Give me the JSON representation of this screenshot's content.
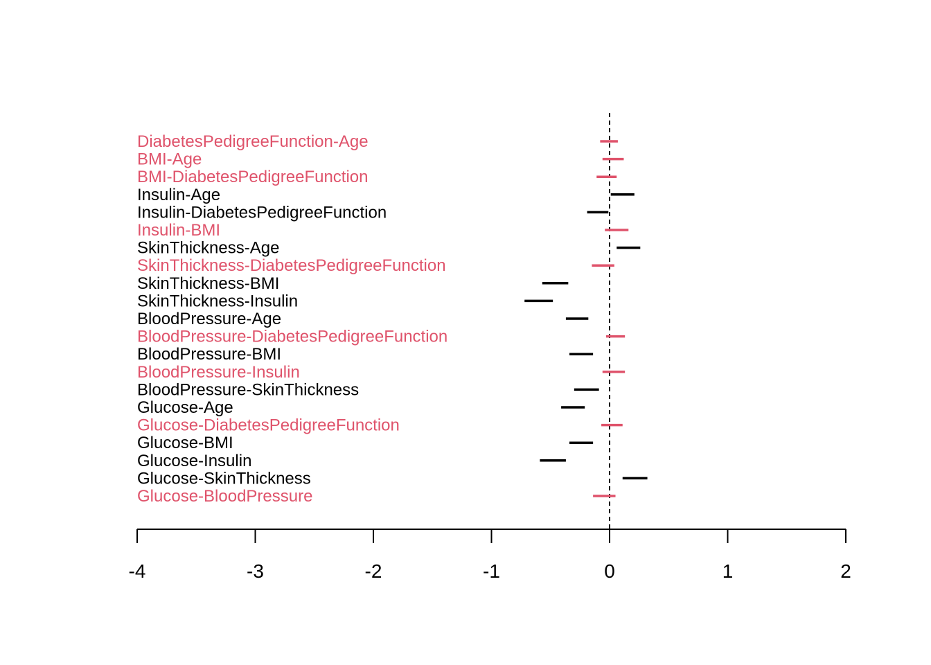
{
  "chart_data": {
    "type": "interval",
    "title": "",
    "xlabel": "",
    "ylabel": "",
    "xlim": [
      -4,
      2
    ],
    "xticks": [
      -4,
      -3,
      -2,
      -1,
      0,
      1,
      2
    ],
    "xtick_labels": [
      "-4",
      "-3",
      "-2",
      "-1",
      "0",
      "1",
      "2"
    ],
    "reference_line_x": 0,
    "colors": {
      "significant": "#000000",
      "not_significant": "#DF536B"
    },
    "intervals": [
      {
        "label": "DiabetesPedigreeFunction-Age",
        "lower": -0.08,
        "upper": 0.07,
        "significant": false
      },
      {
        "label": "BMI-Age",
        "lower": -0.06,
        "upper": 0.12,
        "significant": false
      },
      {
        "label": "BMI-DiabetesPedigreeFunction",
        "lower": -0.11,
        "upper": 0.06,
        "significant": false
      },
      {
        "label": "Insulin-Age",
        "lower": 0.01,
        "upper": 0.21,
        "significant": true
      },
      {
        "label": "Insulin-DiabetesPedigreeFunction",
        "lower": -0.19,
        "upper": -0.01,
        "significant": true
      },
      {
        "label": "Insulin-BMI",
        "lower": -0.04,
        "upper": 0.16,
        "significant": false
      },
      {
        "label": "SkinThickness-Age",
        "lower": 0.06,
        "upper": 0.26,
        "significant": true
      },
      {
        "label": "SkinThickness-DiabetesPedigreeFunction",
        "lower": -0.15,
        "upper": 0.04,
        "significant": false
      },
      {
        "label": "SkinThickness-BMI",
        "lower": -0.57,
        "upper": -0.35,
        "significant": true
      },
      {
        "label": "SkinThickness-Insulin",
        "lower": -0.72,
        "upper": -0.48,
        "significant": true
      },
      {
        "label": "BloodPressure-Age",
        "lower": -0.37,
        "upper": -0.18,
        "significant": true
      },
      {
        "label": "BloodPressure-DiabetesPedigreeFunction",
        "lower": -0.03,
        "upper": 0.13,
        "significant": false
      },
      {
        "label": "BloodPressure-BMI",
        "lower": -0.34,
        "upper": -0.14,
        "significant": true
      },
      {
        "label": "BloodPressure-Insulin",
        "lower": -0.06,
        "upper": 0.13,
        "significant": false
      },
      {
        "label": "BloodPressure-SkinThickness",
        "lower": -0.3,
        "upper": -0.09,
        "significant": true
      },
      {
        "label": "Glucose-Age",
        "lower": -0.41,
        "upper": -0.21,
        "significant": true
      },
      {
        "label": "Glucose-DiabetesPedigreeFunction",
        "lower": -0.07,
        "upper": 0.11,
        "significant": false
      },
      {
        "label": "Glucose-BMI",
        "lower": -0.34,
        "upper": -0.14,
        "significant": true
      },
      {
        "label": "Glucose-Insulin",
        "lower": -0.59,
        "upper": -0.37,
        "significant": true
      },
      {
        "label": "Glucose-SkinThickness",
        "lower": 0.11,
        "upper": 0.32,
        "significant": true
      },
      {
        "label": "Glucose-BloodPressure",
        "lower": -0.14,
        "upper": 0.05,
        "significant": false
      }
    ]
  }
}
